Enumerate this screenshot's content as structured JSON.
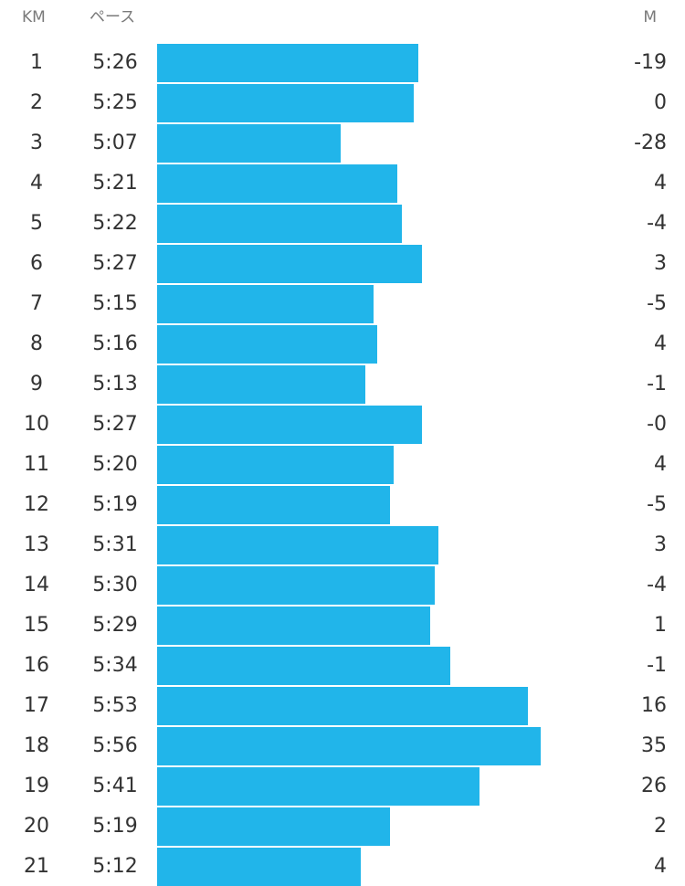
{
  "header": {
    "km_label": "KM",
    "pace_label": "ペース",
    "elevation_label": "M"
  },
  "colors": {
    "bar": "#21b5ea"
  },
  "chart_data": {
    "type": "bar",
    "orientation": "horizontal",
    "categories": [
      "1",
      "2",
      "3",
      "4",
      "5",
      "6",
      "7",
      "8",
      "9",
      "10",
      "11",
      "12",
      "13",
      "14",
      "15",
      "16",
      "17",
      "18",
      "19",
      "20",
      "21"
    ],
    "series": [
      {
        "values": [
          326,
          325,
          307,
          321,
          322,
          327,
          315,
          316,
          313,
          327,
          320,
          319,
          331,
          330,
          329,
          334,
          353,
          356,
          341,
          319,
          312
        ]
      }
    ],
    "pace_labels": [
      "5:26",
      "5:25",
      "5:07",
      "5:21",
      "5:22",
      "5:27",
      "5:15",
      "5:16",
      "5:13",
      "5:27",
      "5:20",
      "5:19",
      "5:31",
      "5:30",
      "5:29",
      "5:34",
      "5:53",
      "5:56",
      "5:41",
      "5:19",
      "5:12"
    ],
    "elevation_labels": [
      "-19",
      "0",
      "-28",
      "4",
      "-4",
      "3",
      "-5",
      "4",
      "-1",
      "-0",
      "4",
      "-5",
      "3",
      "-4",
      "1",
      "-1",
      "16",
      "35",
      "26",
      "2",
      "4"
    ],
    "grid": false
  }
}
